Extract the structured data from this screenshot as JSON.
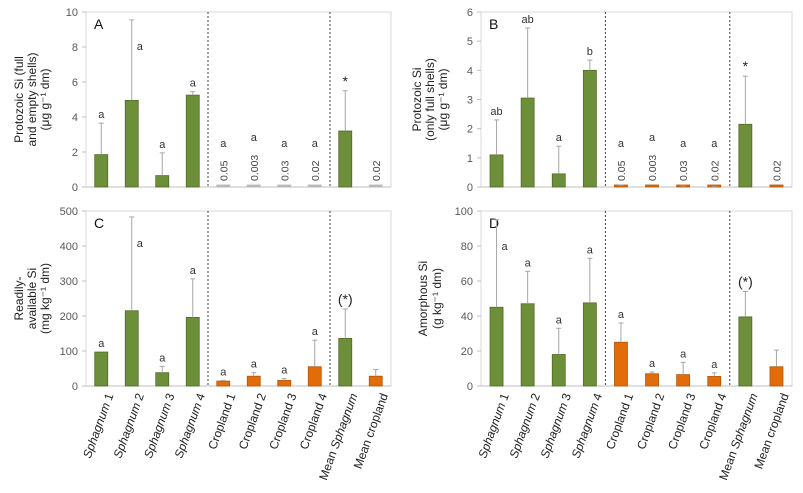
{
  "colors": {
    "sphagnum": "#6e8f3a",
    "sphagnum_edge": "#4f6b25",
    "cropland": "#e36c0a",
    "cropland_edge": "#b45508",
    "cropland_tiny_A": "#b8b8b8",
    "errorbar": "#a6a6a6",
    "frame": "#d9d9d9",
    "divider": "#404040"
  },
  "categories": [
    "Sphagnum 1",
    "Sphagnum 2",
    "Sphagnum 3",
    "Sphagnum 4",
    "Cropland 1",
    "Cropland 2",
    "Cropland 3",
    "Cropland 4",
    "Mean Sphagnum",
    "Mean cropland"
  ],
  "category_italic": [
    {
      "italic": "Sphagnum",
      "rest": " 1"
    },
    {
      "italic": "Sphagnum",
      "rest": " 2"
    },
    {
      "italic": "Sphagnum",
      "rest": " 3"
    },
    {
      "italic": "Sphagnum",
      "rest": " 4"
    },
    {
      "italic": "",
      "rest": "Cropland 1"
    },
    {
      "italic": "",
      "rest": "Cropland 2"
    },
    {
      "italic": "",
      "rest": "Cropland 3"
    },
    {
      "italic": "",
      "rest": "Cropland 4"
    },
    {
      "italic": "Sphagnum",
      "rest": "Mean ",
      "prefix": true
    },
    {
      "italic": "",
      "rest": "Mean cropland"
    }
  ],
  "chart_data": [
    {
      "panel": "A",
      "type": "bar",
      "ylabel_lines": [
        "Protozoic Si (full",
        "and empty shells)",
        "(μg g⁻¹ dm)"
      ],
      "ylim": [
        0,
        10
      ],
      "yticks": [
        0,
        2,
        4,
        6,
        8,
        10
      ],
      "categories": [
        "Sphagnum 1",
        "Sphagnum 2",
        "Sphagnum 3",
        "Sphagnum 4",
        "Cropland 1",
        "Cropland 2",
        "Cropland 3",
        "Cropland 4",
        "Mean Sphagnum",
        "Mean cropland"
      ],
      "values": [
        1.85,
        4.95,
        0.65,
        5.25,
        0.05,
        0.003,
        0.03,
        0.02,
        3.2,
        0.02
      ],
      "errors": [
        1.8,
        4.6,
        1.3,
        0.2,
        0,
        0,
        0,
        0,
        2.3,
        0
      ],
      "letters": [
        "a",
        "a",
        "a",
        "a",
        "a",
        "a",
        "a",
        "a",
        "*",
        ""
      ],
      "value_labels": [
        "",
        "",
        "",
        "",
        "0.05",
        "0.003",
        "0.03",
        "0.02",
        "",
        "0.02"
      ],
      "groups": [
        "sphagnum",
        "sphagnum",
        "sphagnum",
        "sphagnum",
        "cropland",
        "cropland",
        "cropland",
        "cropland",
        "sphagnum",
        "cropland"
      ]
    },
    {
      "panel": "B",
      "type": "bar",
      "ylabel_lines": [
        "Protozoic Si",
        "(only full shells)",
        "(μg g⁻¹ dm)"
      ],
      "ylim": [
        0,
        6
      ],
      "yticks": [
        0,
        1,
        2,
        3,
        4,
        5,
        6
      ],
      "categories": [
        "Sphagnum 1",
        "Sphagnum 2",
        "Sphagnum 3",
        "Sphagnum 4",
        "Cropland 1",
        "Cropland 2",
        "Cropland 3",
        "Cropland 4",
        "Mean Sphagnum",
        "Mean cropland"
      ],
      "values": [
        1.1,
        3.05,
        0.45,
        4.0,
        0.05,
        0.003,
        0.03,
        0.02,
        2.15,
        0.02
      ],
      "errors": [
        1.2,
        2.4,
        0.95,
        0.35,
        0.02,
        0,
        0.01,
        0.01,
        1.65,
        0
      ],
      "letters": [
        "ab",
        "ab",
        "a",
        "b",
        "a",
        "a",
        "a",
        "a",
        "*",
        ""
      ],
      "value_labels": [
        "",
        "",
        "",
        "",
        "0.05",
        "0.003",
        "0.03",
        "0.02",
        "",
        "0.02"
      ],
      "groups": [
        "sphagnum",
        "sphagnum",
        "sphagnum",
        "sphagnum",
        "cropland",
        "cropland",
        "cropland",
        "cropland",
        "sphagnum",
        "cropland"
      ]
    },
    {
      "panel": "C",
      "type": "bar",
      "ylabel_lines": [
        "Readily-",
        "available Si",
        "(mg kg⁻¹ dm)"
      ],
      "ylim": [
        0,
        500
      ],
      "yticks": [
        0,
        100,
        200,
        300,
        400,
        500
      ],
      "categories": [
        "Sphagnum 1",
        "Sphagnum 2",
        "Sphagnum 3",
        "Sphagnum 4",
        "Cropland 1",
        "Cropland 2",
        "Cropland 3",
        "Cropland 4",
        "Mean Sphagnum",
        "Mean cropland"
      ],
      "values": [
        97,
        215,
        38,
        196,
        14,
        28,
        16,
        55,
        136,
        28
      ],
      "errors": [
        0,
        268,
        18,
        110,
        2,
        10,
        5,
        76,
        84,
        19
      ],
      "letters": [
        "a",
        "a",
        "a",
        "a",
        "a",
        "a",
        "a",
        "a",
        "(*)",
        ""
      ],
      "value_labels": [
        "",
        "",
        "",
        "",
        "",
        "",
        "",
        "",
        "",
        ""
      ],
      "groups": [
        "sphagnum",
        "sphagnum",
        "sphagnum",
        "sphagnum",
        "cropland",
        "cropland",
        "cropland",
        "cropland",
        "sphagnum",
        "cropland"
      ]
    },
    {
      "panel": "D",
      "type": "bar",
      "ylabel_lines": [
        "Amorphous Si",
        "(g kg⁻¹ dm)"
      ],
      "ylim": [
        0,
        100
      ],
      "yticks": [
        0,
        20,
        40,
        60,
        80,
        100
      ],
      "categories": [
        "Sphagnum 1",
        "Sphagnum 2",
        "Sphagnum 3",
        "Sphagnum 4",
        "Cropland 1",
        "Cropland 2",
        "Cropland 3",
        "Cropland 4",
        "Mean Sphagnum",
        "Mean cropland"
      ],
      "values": [
        45,
        47,
        18,
        47.5,
        25,
        7,
        6.5,
        5.5,
        39.5,
        11
      ],
      "errors": [
        50,
        18.5,
        15,
        25.5,
        11,
        1,
        7,
        2,
        14.5,
        9.5
      ],
      "letters": [
        "a",
        "a",
        "a",
        "a",
        "a",
        "a",
        "a",
        "a",
        "(*)",
        ""
      ],
      "value_labels": [
        "",
        "",
        "",
        "",
        "",
        "",
        "",
        "",
        "",
        ""
      ],
      "groups": [
        "sphagnum",
        "sphagnum",
        "sphagnum",
        "sphagnum",
        "cropland",
        "cropland",
        "cropland",
        "cropland",
        "sphagnum",
        "cropland"
      ]
    }
  ]
}
